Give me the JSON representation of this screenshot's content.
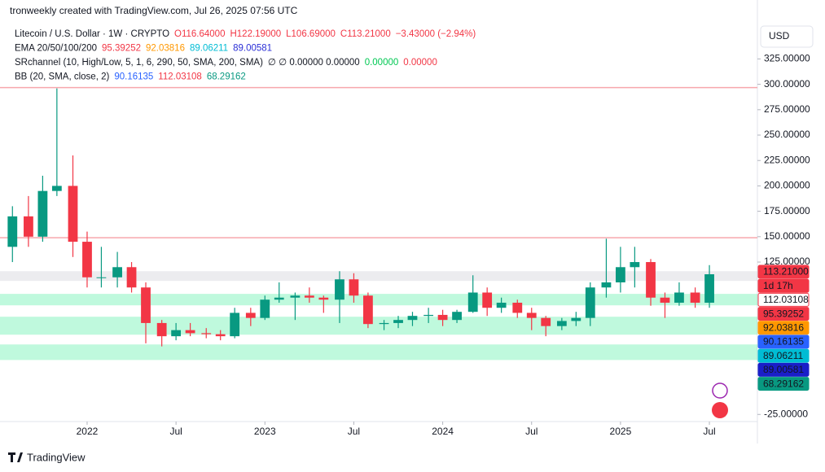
{
  "chart_data": {
    "type": "candlestick",
    "attribution": "tronweekly created with TradingView.com, Jul 26, 2025 07:56 UTC",
    "legend": [
      [
        {
          "text": "Litecoin / U.S. Dollar · 1W · CRYPTO",
          "color": "#131722"
        },
        {
          "text": "O116.64000",
          "color": "#f23645"
        },
        {
          "text": "H122.19000",
          "color": "#f23645"
        },
        {
          "text": "L106.69000",
          "color": "#f23645"
        },
        {
          "text": "C113.21000",
          "color": "#f23645"
        },
        {
          "text": "−3.43000 (−2.94%)",
          "color": "#f23645"
        }
      ],
      [
        {
          "text": "EMA 20/50/100/200",
          "color": "#131722"
        },
        {
          "text": "95.39252",
          "color": "#f23645"
        },
        {
          "text": "92.03816",
          "color": "#ff9800"
        },
        {
          "text": "89.06211",
          "color": "#00bcd4"
        },
        {
          "text": "89.00581",
          "color": "#2a2ed6"
        }
      ],
      [
        {
          "text": "SRchannel (10, High/Low, 5, 1, 6, 290, 50, SMA, 200, SMA)",
          "color": "#131722"
        },
        {
          "text": "∅ ∅ 0.00000 0.00000",
          "color": "#131722"
        },
        {
          "text": "0.00000",
          "color": "#00c853"
        },
        {
          "text": "0.00000",
          "color": "#f23645"
        }
      ],
      [
        {
          "text": "BB (20, SMA, close, 2)",
          "color": "#131722"
        },
        {
          "text": "90.16135",
          "color": "#2962ff"
        },
        {
          "text": "112.03108",
          "color": "#f23645"
        },
        {
          "text": "68.29162",
          "color": "#089981"
        }
      ]
    ],
    "currency": "USD",
    "brand": "TradingView",
    "x": [
      2021.58,
      2021.67,
      2021.75,
      2021.83,
      2021.92,
      2022.0,
      2022.08,
      2022.17,
      2022.25,
      2022.33,
      2022.42,
      2022.5,
      2022.58,
      2022.67,
      2022.75,
      2022.83,
      2022.92,
      2023.0,
      2023.08,
      2023.17,
      2023.25,
      2023.33,
      2023.42,
      2023.5,
      2023.58,
      2023.67,
      2023.75,
      2023.83,
      2023.92,
      2024.0,
      2024.08,
      2024.17,
      2024.25,
      2024.33,
      2024.42,
      2024.5,
      2024.58,
      2024.67,
      2024.75,
      2024.83,
      2024.92,
      2025.0,
      2025.08,
      2025.17,
      2025.25,
      2025.33,
      2025.42,
      2025.5
    ],
    "open": [
      140,
      170,
      150,
      195,
      200,
      145,
      110,
      110,
      120,
      100,
      65,
      52,
      58,
      55,
      54,
      52,
      75,
      70,
      88,
      90,
      92,
      90,
      88,
      108,
      92,
      64,
      65,
      68,
      72,
      73,
      68,
      76,
      95,
      80,
      85,
      75,
      70,
      62,
      67,
      70,
      100,
      105,
      120,
      125,
      90,
      85,
      95,
      85
    ],
    "high": [
      180,
      190,
      210,
      296,
      230,
      155,
      140,
      135,
      125,
      105,
      68,
      65,
      65,
      60,
      58,
      80,
      80,
      92,
      105,
      95,
      100,
      92,
      116,
      114,
      95,
      68,
      72,
      76,
      80,
      78,
      78,
      112,
      100,
      90,
      88,
      80,
      72,
      70,
      76,
      105,
      148,
      140,
      140,
      128,
      95,
      105,
      100,
      122
    ],
    "low": [
      125,
      140,
      145,
      190,
      130,
      100,
      100,
      100,
      95,
      45,
      42,
      48,
      52,
      50,
      48,
      50,
      62,
      68,
      85,
      68,
      85,
      75,
      65,
      85,
      60,
      58,
      60,
      62,
      65,
      62,
      65,
      75,
      72,
      75,
      70,
      58,
      52,
      58,
      62,
      62,
      90,
      95,
      100,
      82,
      70,
      82,
      80,
      80
    ],
    "close": [
      170,
      150,
      195,
      200,
      145,
      110,
      110,
      120,
      100,
      65,
      52,
      58,
      55,
      54,
      52,
      75,
      70,
      88,
      90,
      92,
      90,
      88,
      108,
      92,
      64,
      65,
      68,
      72,
      73,
      68,
      76,
      95,
      80,
      85,
      75,
      70,
      62,
      67,
      70,
      100,
      105,
      120,
      125,
      90,
      85,
      95,
      85,
      113
    ],
    "up_color": "#089981",
    "down_color": "#f23645",
    "xlim": [
      2021.51,
      2025.77
    ],
    "xticks": [
      {
        "value": 2022,
        "label": "2022"
      },
      {
        "value": 2022.5,
        "label": "Jul"
      },
      {
        "value": 2023,
        "label": "2023"
      },
      {
        "value": 2023.5,
        "label": "Jul"
      },
      {
        "value": 2024,
        "label": "2024"
      },
      {
        "value": 2024.5,
        "label": "Jul"
      },
      {
        "value": 2025,
        "label": "2025"
      },
      {
        "value": 2025.5,
        "label": "Jul"
      }
    ],
    "ylim": [
      -32,
      383
    ],
    "yticks": [
      {
        "value": 325,
        "label": "325.00000"
      },
      {
        "value": 300,
        "label": "300.00000"
      },
      {
        "value": 275,
        "label": "275.00000"
      },
      {
        "value": 250,
        "label": "250.00000"
      },
      {
        "value": 225,
        "label": "225.00000"
      },
      {
        "value": 200,
        "label": "200.00000"
      },
      {
        "value": 175,
        "label": "175.00000"
      },
      {
        "value": 150,
        "label": "150.00000"
      },
      {
        "value": 125,
        "label": "125.00000"
      },
      {
        "value": -25,
        "label": "-25.00000"
      }
    ],
    "zones": [
      {
        "low": 106.5,
        "high": 116,
        "color": "#b2b5be"
      },
      {
        "low": 82.4,
        "high": 93.7,
        "color": "#00e676"
      },
      {
        "low": 53.5,
        "high": 71.2,
        "color": "#00e676"
      },
      {
        "low": 28.6,
        "high": 43.9,
        "color": "#00e676"
      }
    ],
    "hlines": [
      {
        "value": 296.8,
        "color": "#f7a7ad"
      },
      {
        "value": 149,
        "color": "#f7a7ad"
      }
    ],
    "price_badges": [
      {
        "label": "113.21000",
        "bg": "#f23645",
        "fg": "#ffffff"
      },
      {
        "label": "1d 17h",
        "bg": "#f23645",
        "fg": "#ffffff"
      },
      {
        "label": "112.03108",
        "bg": "#ffffff",
        "fg": "#131722"
      },
      {
        "label": "95.39252",
        "bg": "#f23645",
        "fg": "#ffffff"
      },
      {
        "label": "92.03816",
        "bg": "#ff9800",
        "fg": "#ffffff"
      },
      {
        "label": "90.16135",
        "bg": "#2962ff",
        "fg": "#ffffff"
      },
      {
        "label": "89.06211",
        "bg": "#00bcd4",
        "fg": "#131722"
      },
      {
        "label": "89.00581",
        "bg": "#1a1fc8",
        "fg": "#ffffff"
      },
      {
        "label": "68.29162",
        "bg": "#089981",
        "fg": "#ffffff"
      }
    ]
  }
}
